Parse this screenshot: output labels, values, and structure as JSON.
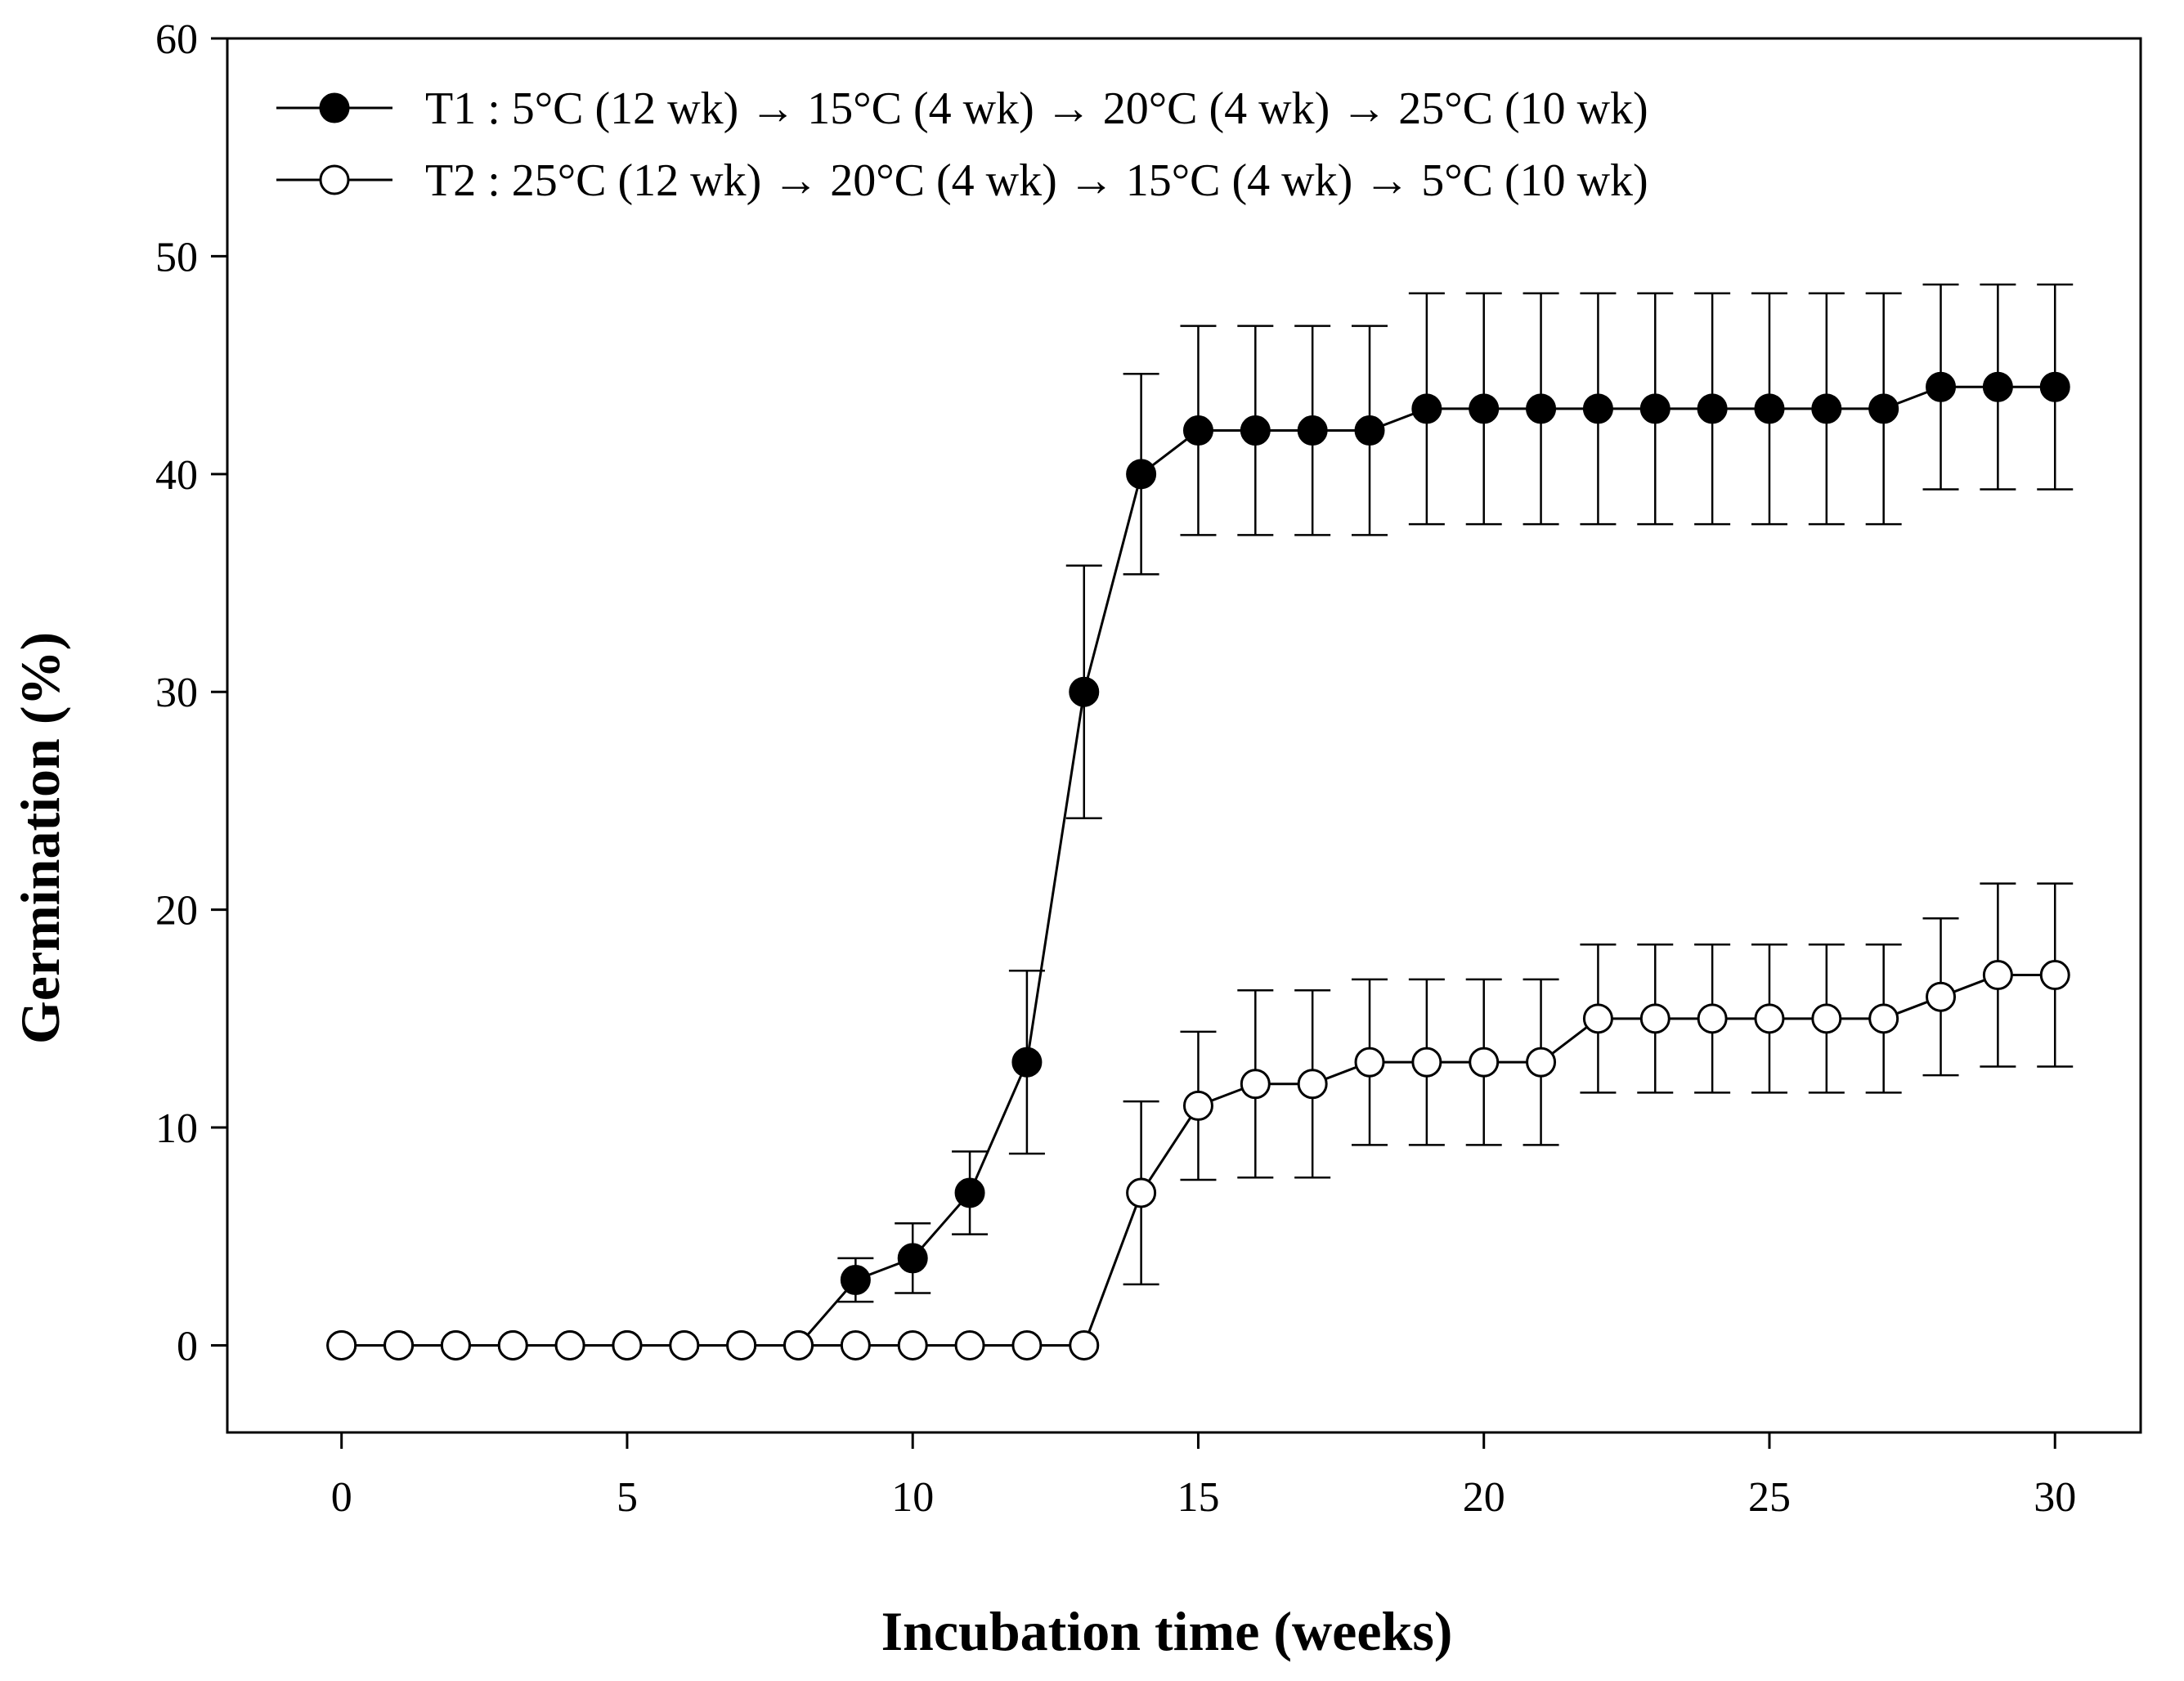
{
  "chart_data": {
    "type": "line",
    "title": "",
    "xlabel": "Incubation time (weeks)",
    "ylabel": "Germination (%)",
    "xlim": [
      -2,
      31.5
    ],
    "ylim": [
      -4,
      60
    ],
    "xticks": [
      0,
      5,
      10,
      15,
      20,
      25,
      30
    ],
    "yticks": [
      0,
      10,
      20,
      30,
      40,
      50,
      60
    ],
    "grid": false,
    "legend_position": "top-left",
    "series": [
      {
        "name": "T1 : 5°C (12 wk) → 15°C (4 wk) → 20°C (4 wk) → 25°C (10 wk)",
        "marker": "filled-circle",
        "color": "#000000",
        "x": [
          0,
          1,
          2,
          3,
          4,
          5,
          6,
          7,
          8,
          9,
          10,
          11,
          12,
          13,
          14,
          15,
          16,
          17,
          18,
          19,
          20,
          21,
          22,
          23,
          24,
          25,
          26,
          27,
          28,
          29,
          30
        ],
        "values": [
          0,
          0,
          0,
          0,
          0,
          0,
          0,
          0,
          0,
          3,
          4,
          7,
          13,
          30,
          40,
          42,
          42,
          42,
          42,
          43,
          43,
          43,
          43,
          43,
          43,
          43,
          43,
          43,
          44,
          44,
          44
        ],
        "error": [
          0,
          0,
          0,
          0,
          0,
          0,
          0,
          0,
          0,
          1,
          1.6,
          1.9,
          4.2,
          5.8,
          4.6,
          4.8,
          4.8,
          4.8,
          4.8,
          5.3,
          5.3,
          5.3,
          5.3,
          5.3,
          5.3,
          5.3,
          5.3,
          5.3,
          4.7,
          4.7,
          4.7
        ]
      },
      {
        "name": "T2 : 25°C (12 wk) → 20°C (4 wk) → 15°C (4 wk) → 5°C (10 wk)",
        "marker": "open-circle",
        "color": "#000000",
        "x": [
          0,
          1,
          2,
          3,
          4,
          5,
          6,
          7,
          8,
          9,
          10,
          11,
          12,
          13,
          14,
          15,
          16,
          17,
          18,
          19,
          20,
          21,
          22,
          23,
          24,
          25,
          26,
          27,
          28,
          29,
          30
        ],
        "values": [
          0,
          0,
          0,
          0,
          0,
          0,
          0,
          0,
          0,
          0,
          0,
          0,
          0,
          0,
          7,
          11,
          12,
          12,
          13,
          13,
          13,
          13,
          15,
          15,
          15,
          15,
          15,
          15,
          16,
          17,
          17
        ],
        "error": [
          0,
          0,
          0,
          0,
          0,
          0,
          0,
          0,
          0,
          0,
          0,
          0,
          0,
          0,
          4.2,
          3.4,
          4.3,
          4.3,
          3.8,
          3.8,
          3.8,
          3.8,
          3.4,
          3.4,
          3.4,
          3.4,
          3.4,
          3.4,
          3.6,
          4.2,
          4.2
        ]
      }
    ]
  }
}
